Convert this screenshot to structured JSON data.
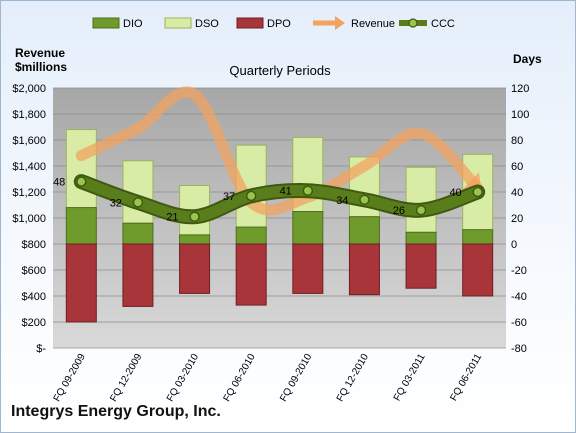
{
  "chart_data": {
    "type": "bar",
    "title": "Quarterly Periods",
    "left_axis_title_line1": "Revenue",
    "left_axis_title_line2": "$millions",
    "right_axis_title": "Days",
    "categories": [
      "FQ 09-2009",
      "FQ 12-2009",
      "FQ 03-2010",
      "FQ 06-2010",
      "FQ 09-2010",
      "FQ 12-2010",
      "FQ 03-2011",
      "FQ 06-2011"
    ],
    "left_ticks": [
      "$-",
      "$200",
      "$400",
      "$600",
      "$800",
      "$1,000",
      "$1,200",
      "$1,400",
      "$1,600",
      "$1,800",
      "$2,000"
    ],
    "right_ticks": [
      "-80",
      "-60",
      "-40",
      "-20",
      "0",
      "20",
      "40",
      "60",
      "80",
      "100",
      "120"
    ],
    "ylim_left": [
      0,
      2000
    ],
    "ylim_right": [
      -80,
      120
    ],
    "grid": true,
    "legend_position": "top",
    "series": [
      {
        "name": "DIO",
        "type": "bar",
        "axis": "right",
        "color": "#6f9a2c",
        "values": [
          28,
          16,
          7,
          13,
          25,
          21,
          9,
          11
        ]
      },
      {
        "name": "DSO",
        "type": "bar",
        "axis": "right",
        "color": "#d9eca6",
        "values": [
          60,
          48,
          38,
          63,
          57,
          46,
          50,
          58
        ]
      },
      {
        "name": "DPO",
        "type": "bar",
        "axis": "right",
        "color": "#a8353a",
        "values": [
          -60,
          -48,
          -38,
          -47,
          -38,
          -39,
          -34,
          -40
        ]
      },
      {
        "name": "Revenue",
        "type": "line",
        "axis": "left",
        "color": "#f1a35f",
        "values": [
          1480,
          1690,
          1950,
          1120,
          1160,
          1400,
          1650,
          1230
        ]
      },
      {
        "name": "CCC",
        "type": "line",
        "axis": "right",
        "color": "#5a7d1c",
        "values": [
          48,
          32,
          21,
          37,
          41,
          34,
          26,
          40
        ],
        "labels": [
          "48",
          "32",
          "21",
          "37",
          "41",
          "34",
          "26",
          "40"
        ]
      }
    ]
  },
  "footer": {
    "company": "Integrys Energy Group, Inc."
  }
}
